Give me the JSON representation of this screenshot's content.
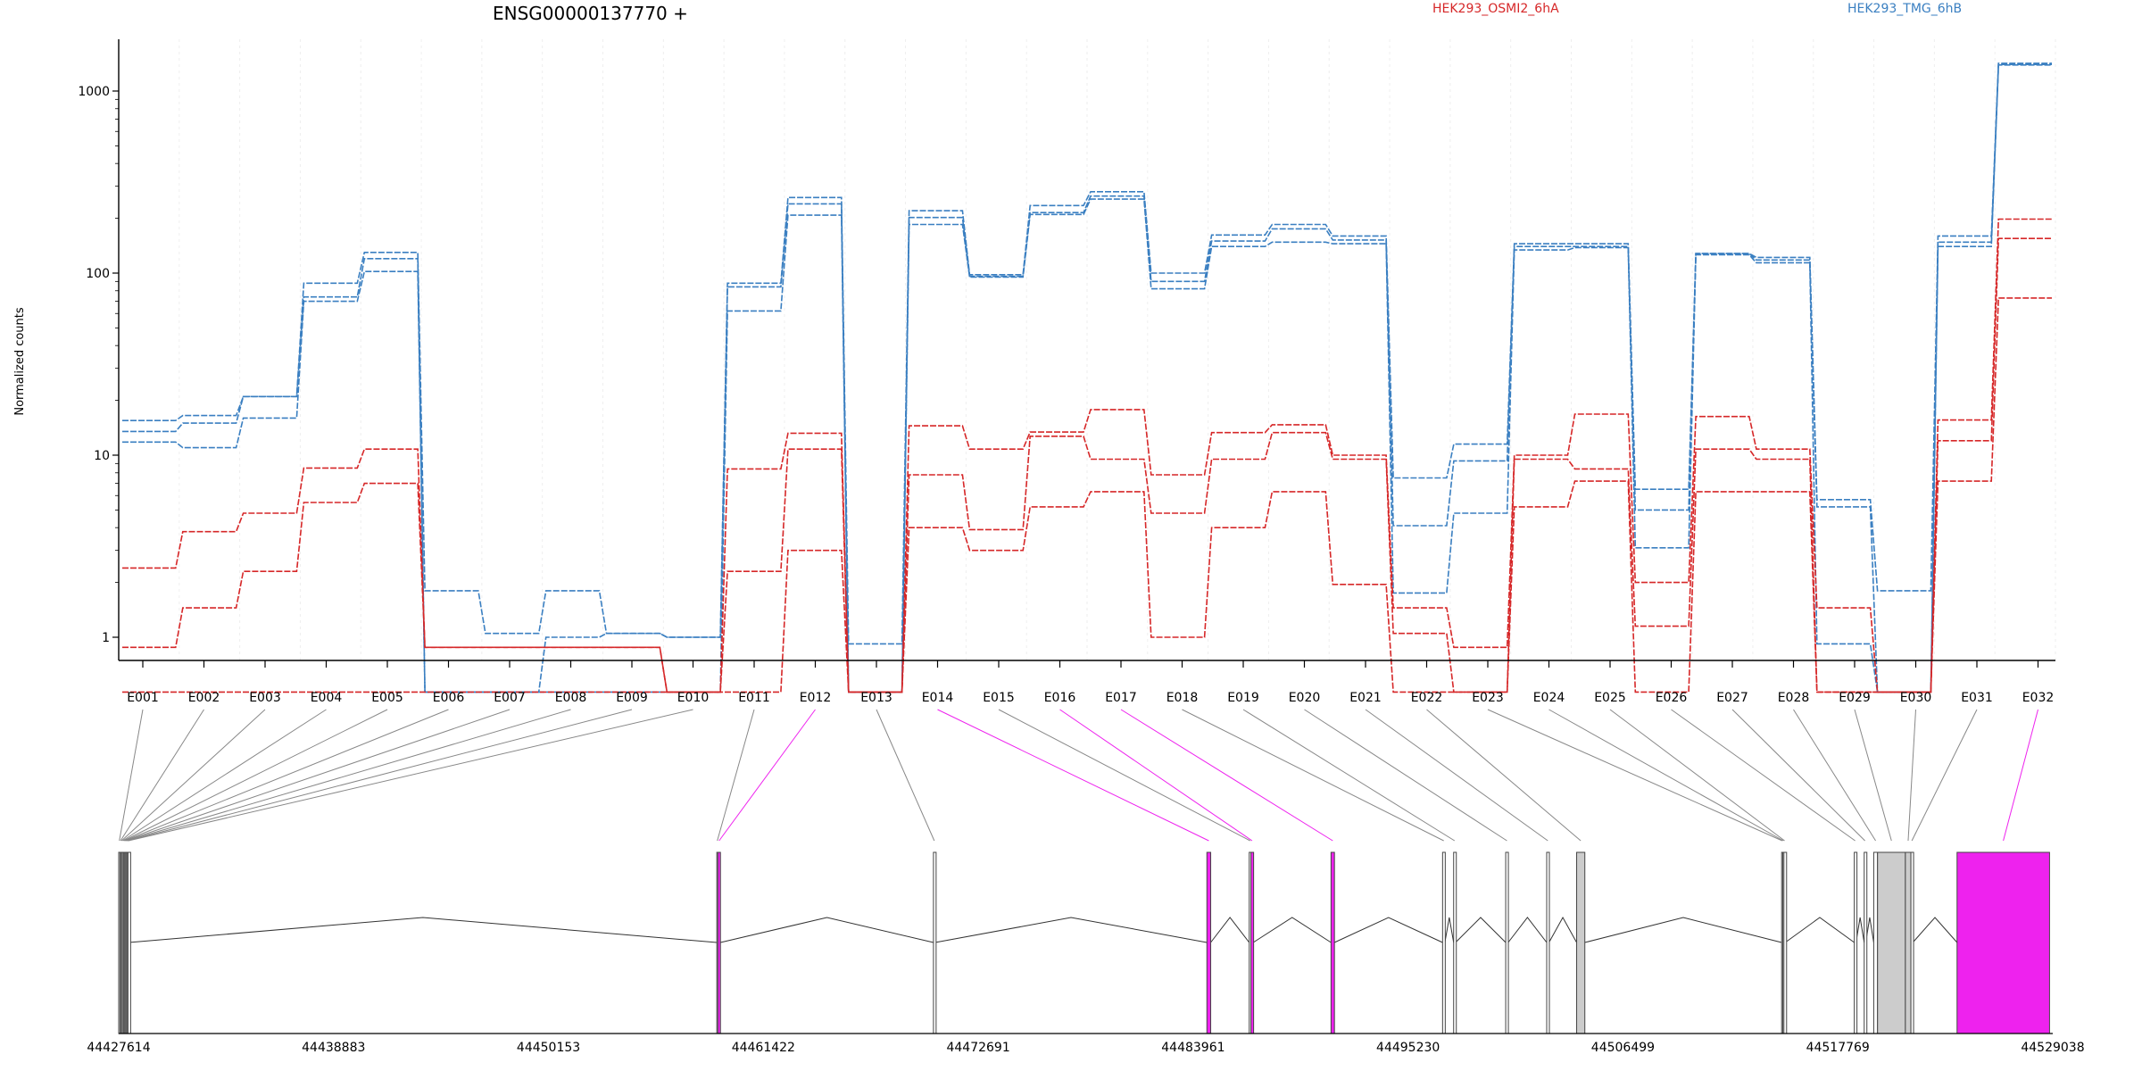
{
  "title": "ENSG00000137770 +",
  "ylabel": "Normalized counts",
  "colors": {
    "group_a": "#d62728",
    "group_b": "#3a7fc1",
    "highlight": "#ee22ee",
    "neutral_fill": "#cccccc",
    "axis": "#000000",
    "connector": "#888888"
  },
  "chart_data": {
    "type": "line",
    "title": "ENSG00000137770 +",
    "ylabel": "Normalized counts",
    "yscale": "log",
    "ylim": [
      0.5,
      1900
    ],
    "yticks": [
      "1000",
      "100",
      "10",
      "1"
    ],
    "grid": true,
    "legend": [
      {
        "name": "HEK293_OSMI2_6hA",
        "color": "#d62728"
      },
      {
        "name": "HEK293_TMG_6hB",
        "color": "#3a7fc1"
      }
    ],
    "categories": [
      "E001",
      "E002",
      "E003",
      "E004",
      "E005",
      "E006",
      "E007",
      "E008",
      "E009",
      "E010",
      "E011",
      "E012",
      "E013",
      "E014",
      "E015",
      "E016",
      "E017",
      "E018",
      "E019",
      "E020",
      "E021",
      "E022",
      "E023",
      "E024",
      "E025",
      "E026",
      "E027",
      "E028",
      "E029",
      "E030",
      "E031",
      "E032"
    ],
    "series": [
      {
        "group": "HEK293_TMG_6hB",
        "values": [
          15.5,
          16.5,
          21,
          88,
          130,
          1.8,
          1.05,
          1.8,
          1.05,
          1.0,
          88,
          260,
          0.92,
          220,
          98,
          235,
          280,
          100,
          162,
          185,
          160,
          7.5,
          11.5,
          145,
          145,
          6.5,
          128,
          122,
          5.7,
          1.8,
          160,
          1420
        ]
      },
      {
        "group": "HEK293_TMG_6hB",
        "values": [
          13.5,
          15.0,
          21,
          74,
          120,
          0.5,
          0.5,
          1.0,
          1.05,
          1.0,
          84,
          240,
          0.5,
          202,
          96,
          215,
          265,
          90,
          150,
          175,
          152,
          4.1,
          9.3,
          140,
          140,
          5.0,
          128,
          118,
          5.2,
          0.5,
          148,
          1400
        ]
      },
      {
        "group": "HEK293_TMG_6hB",
        "values": [
          11.8,
          11.0,
          16,
          70,
          102,
          0.5,
          0.5,
          0.5,
          0.5,
          0.5,
          62,
          208,
          0.5,
          185,
          95,
          210,
          255,
          82,
          140,
          148,
          145,
          1.75,
          4.8,
          134,
          138,
          3.1,
          126,
          114,
          0.92,
          0.5,
          140,
          1390
        ]
      },
      {
        "group": "HEK293_OSMI2_6hA",
        "values": [
          2.4,
          3.8,
          4.8,
          8.5,
          10.8,
          0.88,
          0.88,
          0.88,
          0.88,
          0.5,
          8.4,
          13.2,
          0.5,
          14.5,
          10.8,
          13.4,
          17.8,
          7.8,
          13.3,
          14.7,
          10.0,
          1.45,
          0.88,
          10.0,
          16.8,
          2.0,
          16.3,
          10.8,
          1.45,
          0.5,
          15.6,
          198
        ]
      },
      {
        "group": "HEK293_OSMI2_6hA",
        "values": [
          0.88,
          1.45,
          2.3,
          5.5,
          7.0,
          0.88,
          0.88,
          0.88,
          0.88,
          0.5,
          2.3,
          10.8,
          0.5,
          7.8,
          3.9,
          12.7,
          9.5,
          4.8,
          9.5,
          13.3,
          9.5,
          1.05,
          0.5,
          9.5,
          8.4,
          1.15,
          10.8,
          9.5,
          0.5,
          0.5,
          12.0,
          155
        ]
      },
      {
        "group": "HEK293_OSMI2_6hA",
        "values": [
          0.5,
          0.5,
          0.5,
          0.5,
          0.5,
          0.5,
          0.5,
          0.5,
          0.5,
          0.5,
          0.5,
          3.0,
          0.5,
          4.0,
          3.0,
          5.2,
          6.3,
          1.0,
          4.0,
          6.3,
          1.95,
          0.5,
          0.5,
          5.2,
          7.2,
          0.5,
          6.3,
          6.3,
          0.5,
          0.5,
          7.2,
          73
        ]
      }
    ],
    "gene_model": {
      "coordinate_labels": [
        "44427614",
        "44438883",
        "44450153",
        "44461422",
        "44472691",
        "44483961",
        "44495230",
        "44506499",
        "44517769",
        "44529038"
      ],
      "exons": [
        {
          "id": "E001",
          "start": 44427614,
          "end": 44427680,
          "highlight": false
        },
        {
          "id": "E002",
          "start": 44427680,
          "end": 44427740,
          "highlight": false
        },
        {
          "id": "E003",
          "start": 44427740,
          "end": 44427790,
          "highlight": false
        },
        {
          "id": "E004",
          "start": 44427790,
          "end": 44427850,
          "highlight": false
        },
        {
          "id": "E005",
          "start": 44427850,
          "end": 44427900,
          "highlight": false
        },
        {
          "id": "E006",
          "start": 44427900,
          "end": 44427950,
          "highlight": false
        },
        {
          "id": "E007",
          "start": 44427950,
          "end": 44428000,
          "highlight": false
        },
        {
          "id": "E008",
          "start": 44428000,
          "end": 44428050,
          "highlight": false
        },
        {
          "id": "E009",
          "start": 44428050,
          "end": 44428100,
          "highlight": false
        },
        {
          "id": "E010",
          "start": 44428100,
          "end": 44428150,
          "highlight": false
        },
        {
          "id": "E011",
          "start": 44458980,
          "end": 44459030,
          "highlight": false
        },
        {
          "id": "E012",
          "start": 44459030,
          "end": 44459170,
          "highlight": true
        },
        {
          "id": "E013",
          "start": 44470340,
          "end": 44470430,
          "highlight": false
        },
        {
          "id": "E014",
          "start": 44484680,
          "end": 44484880,
          "highlight": true
        },
        {
          "id": "E015",
          "start": 44486900,
          "end": 44486990,
          "highlight": false
        },
        {
          "id": "E016",
          "start": 44486990,
          "end": 44487110,
          "highlight": true
        },
        {
          "id": "E017",
          "start": 44491190,
          "end": 44491370,
          "highlight": true
        },
        {
          "id": "E018",
          "start": 44497040,
          "end": 44497160,
          "highlight": false
        },
        {
          "id": "E019",
          "start": 44497620,
          "end": 44497720,
          "highlight": false
        },
        {
          "id": "E020",
          "start": 44500350,
          "end": 44500480,
          "highlight": false
        },
        {
          "id": "E021",
          "start": 44502500,
          "end": 44502620,
          "highlight": false
        },
        {
          "id": "E022",
          "start": 44504070,
          "end": 44504500,
          "highlight": false
        },
        {
          "id": "E023",
          "start": 44514820,
          "end": 44514880,
          "highlight": false
        },
        {
          "id": "E024",
          "start": 44514880,
          "end": 44514940,
          "highlight": false
        },
        {
          "id": "E025",
          "start": 44514940,
          "end": 44515010,
          "highlight": false
        },
        {
          "id": "E026",
          "start": 44518630,
          "end": 44518720,
          "highlight": false
        },
        {
          "id": "E027",
          "start": 44519150,
          "end": 44519230,
          "highlight": false
        },
        {
          "id": "E028",
          "start": 44519650,
          "end": 44519850,
          "highlight": false
        },
        {
          "id": "E029",
          "start": 44519850,
          "end": 44521310,
          "highlight": false
        },
        {
          "id": "E030",
          "start": 44521310,
          "end": 44521600,
          "highlight": false
        },
        {
          "id": "E031",
          "start": 44521600,
          "end": 44521700,
          "highlight": false
        },
        {
          "id": "E032",
          "start": 44524020,
          "end": 44528870,
          "highlight": true
        }
      ]
    }
  }
}
